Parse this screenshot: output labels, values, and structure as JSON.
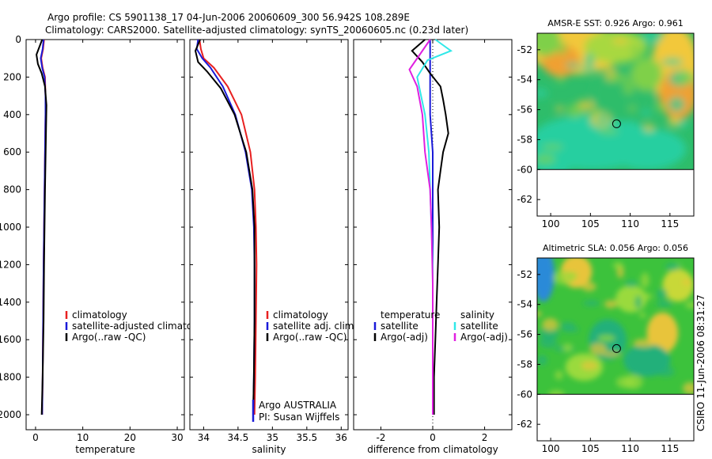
{
  "header": {
    "line1": "Argo profile: CS 5901138_17 04-Jun-2006 20060609_300 56.942S 108.289E",
    "line2": "Climatology: CARS2000. Satellite-adjusted climatology: synTS_20060605.nc (0.23d later)"
  },
  "credit": "CSIRO 11-Jun-2006 08:31:27",
  "colors": {
    "red": "#e82020",
    "blue": "#1a1ad8",
    "black": "#000000",
    "cyan": "#30e8e8",
    "magenta": "#e020e0"
  },
  "chart_data": [
    {
      "type": "line",
      "id": "temperature",
      "xlabel": "temperature",
      "ylabel": "",
      "xlim": [
        -2,
        31.5
      ],
      "ylim": [
        2080,
        0
      ],
      "xticks": [
        "0",
        "10",
        "20",
        "30"
      ],
      "xtick_values": [
        0,
        10,
        20,
        30
      ],
      "yticks": [
        "0",
        "200",
        "400",
        "600",
        "800",
        "1000",
        "1200",
        "1400",
        "1600",
        "1800",
        "2000"
      ],
      "ytick_values": [
        0,
        200,
        400,
        600,
        800,
        1000,
        1200,
        1400,
        1600,
        1800,
        2000
      ],
      "legend": [
        "climatology",
        "satellite-adjusted climatology",
        "Argo(..raw -QC)"
      ],
      "series": [
        {
          "name": "climatology",
          "color": "red",
          "x": [
            1.8,
            1.6,
            1.2,
            1.5,
            2.0,
            2.1,
            2.1,
            2.0,
            1.9,
            1.8,
            1.7,
            1.6,
            1.5,
            1.4
          ],
          "y": [
            0,
            50,
            100,
            150,
            200,
            300,
            400,
            600,
            800,
            1000,
            1200,
            1500,
            1800,
            2000
          ]
        },
        {
          "name": "satellite-adjusted climatology",
          "color": "blue",
          "x": [
            1.7,
            1.5,
            1.1,
            1.4,
            1.9,
            2.1,
            2.1,
            2.0,
            1.9,
            1.8,
            1.7,
            1.6,
            1.5,
            1.4
          ],
          "y": [
            0,
            50,
            100,
            150,
            200,
            300,
            400,
            600,
            800,
            1000,
            1200,
            1500,
            1800,
            2000
          ]
        },
        {
          "name": "Argo(..raw -QC)",
          "color": "black",
          "x": [
            1.4,
            0.8,
            0.2,
            0.5,
            1.3,
            2.0,
            2.3,
            2.2,
            2.0,
            1.9,
            1.8,
            1.7,
            1.5,
            1.3
          ],
          "y": [
            0,
            40,
            80,
            130,
            180,
            250,
            350,
            500,
            800,
            1000,
            1200,
            1500,
            1800,
            2000
          ]
        }
      ]
    },
    {
      "type": "line",
      "id": "salinity",
      "xlabel": "salinity",
      "ylabel": "",
      "xlim": [
        33.8,
        36.1
      ],
      "ylim": [
        2080,
        0
      ],
      "xticks": [
        "34",
        "34.5",
        "35",
        "35.5",
        "36"
      ],
      "xtick_values": [
        34,
        34.5,
        35,
        35.5,
        36
      ],
      "legend": [
        "climatology",
        "satellite adj. clim.",
        "Argo(..raw -QC)"
      ],
      "annotation": [
        "Argo AUSTRALIA",
        "PI: Susan Wijffels"
      ],
      "series": [
        {
          "name": "climatology",
          "color": "red",
          "x": [
            33.94,
            33.96,
            34.0,
            34.15,
            34.35,
            34.55,
            34.68,
            34.74,
            34.76,
            34.77,
            34.76,
            34.75,
            34.74
          ],
          "y": [
            0,
            50,
            100,
            150,
            250,
            400,
            600,
            800,
            1000,
            1200,
            1500,
            1800,
            2000
          ]
        },
        {
          "name": "satellite adj. clim.",
          "color": "blue",
          "x": [
            33.92,
            33.9,
            33.98,
            34.1,
            34.28,
            34.46,
            34.61,
            34.7,
            34.73,
            34.74,
            34.74,
            34.73,
            34.72
          ],
          "y": [
            0,
            50,
            100,
            150,
            250,
            400,
            600,
            800,
            1000,
            1200,
            1500,
            1800,
            2000
          ]
        },
        {
          "name": "Argo(..raw -QC)",
          "color": "black",
          "x": [
            33.95,
            33.88,
            33.92,
            34.05,
            34.25,
            34.45,
            34.62,
            34.71,
            34.74,
            34.74,
            34.74,
            34.73,
            34.72
          ],
          "y": [
            0,
            60,
            120,
            170,
            260,
            400,
            600,
            800,
            1000,
            1200,
            1500,
            1800,
            2000
          ]
        }
      ]
    },
    {
      "type": "line",
      "id": "difference",
      "xlabel": "difference from climatology",
      "ylabel": "",
      "xlim": [
        -3.05,
        3.05
      ],
      "ylim": [
        2080,
        0
      ],
      "xticks": [
        "-2",
        "0",
        "2"
      ],
      "xtick_values": [
        -2,
        0,
        2
      ],
      "legend_left_title": "temperature",
      "legend_right_title": "salinity",
      "legend_left": [
        "satellite",
        "Argo(-adj)"
      ],
      "legend_right": [
        "satellite",
        "Argo(-adj)"
      ],
      "series": [
        {
          "name": "temperature satellite",
          "color": "blue",
          "x": [
            -0.1,
            -0.1,
            -0.1,
            -0.1,
            0.0,
            0.0,
            0.0,
            0.0,
            0.0,
            0.0,
            0.0
          ],
          "y": [
            0,
            100,
            200,
            400,
            600,
            800,
            1000,
            1200,
            1500,
            1800,
            2000
          ]
        },
        {
          "name": "temperature Argo(-adj)",
          "color": "black",
          "x": [
            -0.3,
            -0.8,
            -0.4,
            -0.1,
            0.3,
            0.4,
            0.5,
            0.6,
            0.4,
            0.3,
            0.2,
            0.25,
            0.2,
            0.15,
            0.1,
            0.05,
            0.05
          ],
          "y": [
            0,
            60,
            120,
            180,
            250,
            320,
            400,
            500,
            600,
            700,
            800,
            1000,
            1200,
            1400,
            1600,
            1800,
            2000
          ]
        },
        {
          "name": "salinity satellite",
          "color": "cyan",
          "x": [
            0.1,
            0.7,
            -0.2,
            -0.6,
            -0.3,
            -0.15,
            -0.1,
            -0.05,
            0.0,
            0.0,
            0.0
          ],
          "y": [
            0,
            60,
            110,
            200,
            400,
            600,
            800,
            1000,
            1200,
            1600,
            2000
          ]
        },
        {
          "name": "salinity Argo(-adj)",
          "color": "magenta",
          "x": [
            -0.1,
            -0.5,
            -0.9,
            -0.6,
            -0.4,
            -0.3,
            -0.1,
            -0.05,
            0.0,
            0.0
          ],
          "y": [
            0,
            80,
            160,
            250,
            400,
            600,
            800,
            1000,
            1300,
            2000
          ]
        }
      ]
    },
    {
      "type": "heatmap",
      "id": "sst_map",
      "title": "AMSR-E SST: 0.926 Argo: 0.961",
      "xlim": [
        98.3,
        118
      ],
      "ylim": [
        -63.1,
        -50.9
      ],
      "xticks": [
        "100",
        "105",
        "110",
        "115"
      ],
      "xtick_values": [
        100,
        105,
        110,
        115
      ],
      "yticks": [
        "-52",
        "-54",
        "-56",
        "-58",
        "-60",
        "-62"
      ],
      "ytick_values": [
        -52,
        -54,
        -56,
        -58,
        -60,
        -62
      ],
      "data_extent_lat": [
        -60,
        -50.9
      ],
      "marker": {
        "lon": 108.289,
        "lat": -56.942
      }
    },
    {
      "type": "heatmap",
      "id": "sla_map",
      "title": "Altimetric SLA: 0.056 Argo: 0.056",
      "xlim": [
        98.3,
        118
      ],
      "ylim": [
        -63.1,
        -50.9
      ],
      "xticks": [
        "100",
        "105",
        "110",
        "115"
      ],
      "xtick_values": [
        100,
        105,
        110,
        115
      ],
      "yticks": [
        "-52",
        "-54",
        "-56",
        "-58",
        "-60",
        "-62"
      ],
      "ytick_values": [
        -52,
        -54,
        -56,
        -58,
        -60,
        -62
      ],
      "data_extent_lat": [
        -60,
        -50.9
      ],
      "marker": {
        "lon": 108.289,
        "lat": -56.942
      }
    }
  ]
}
